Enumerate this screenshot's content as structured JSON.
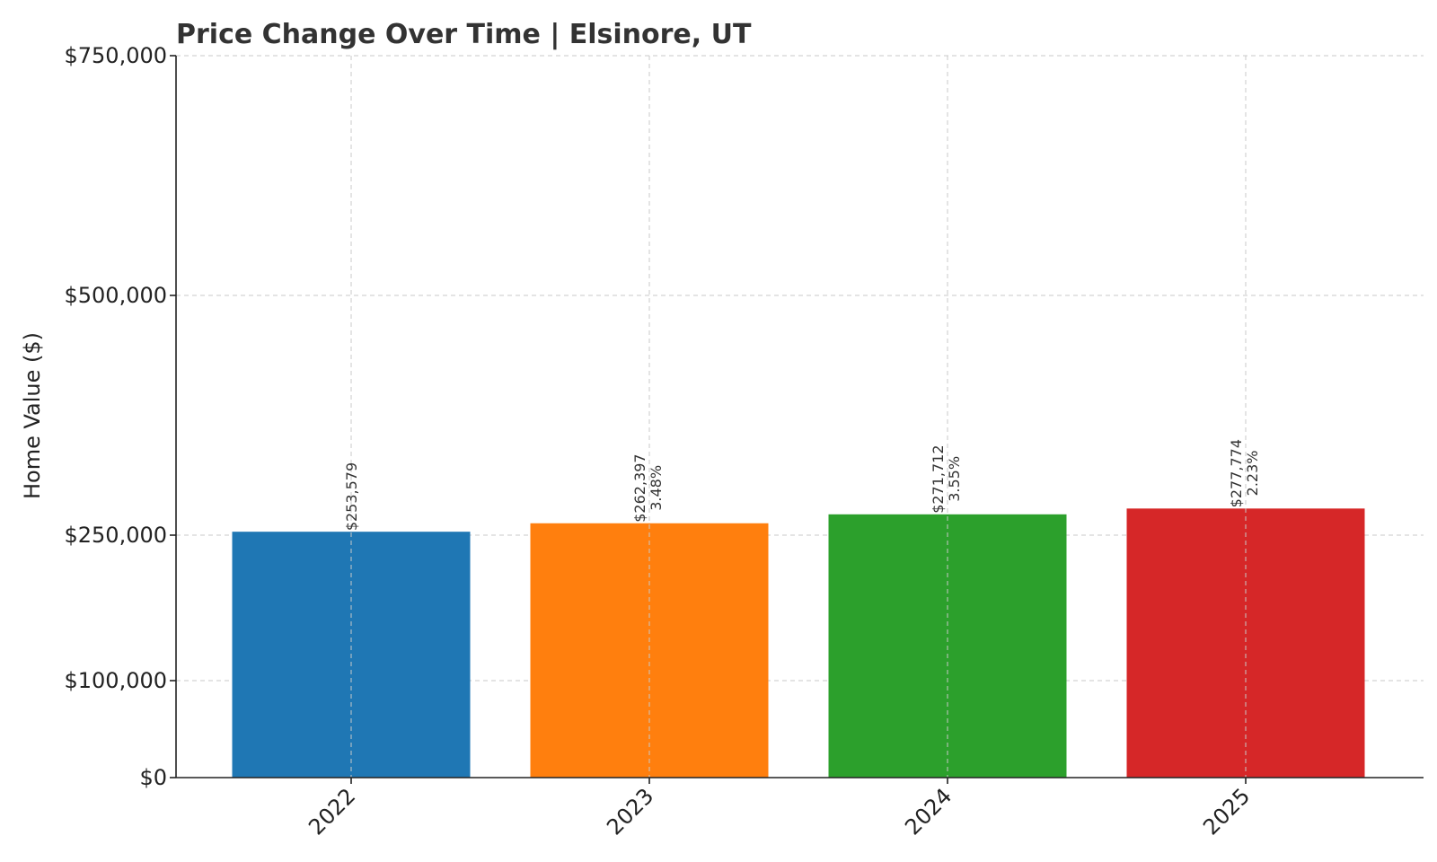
{
  "chart_data": {
    "type": "bar",
    "title": "Price Change Over Time | Elsinore, UT",
    "xlabel": "",
    "ylabel": "Home Value ($)",
    "categories": [
      "2022",
      "2023",
      "2024",
      "2025"
    ],
    "values": [
      253579,
      262397,
      271712,
      277774
    ],
    "value_labels": [
      "$253,579",
      "$262,397",
      "$271,712",
      "$277,774"
    ],
    "change_labels": [
      "",
      "3.48%",
      "3.55%",
      "2.23%"
    ],
    "colors": [
      "#1f77b4",
      "#ff7f0e",
      "#2ca02c",
      "#d62728"
    ],
    "ylim": [
      0,
      750000
    ],
    "yticks": [
      0,
      100000,
      250000,
      500000,
      750000
    ],
    "ytick_labels": [
      "$0",
      "$100,000",
      "$250,000",
      "$500,000",
      "$750,000"
    ],
    "grid": true,
    "scale_note": "piecewise linear: segments [0,100k], [100k,250k], [250k,750k]"
  }
}
